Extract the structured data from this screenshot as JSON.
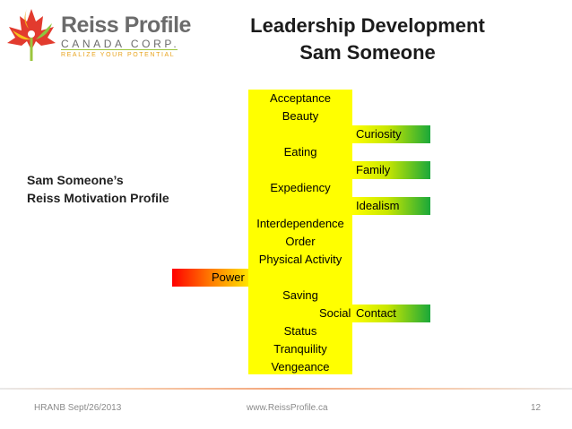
{
  "logo": {
    "name": "Reiss Profile",
    "sub": "CANADA CORP.",
    "tagline": "REALIZE YOUR POTENTIAL"
  },
  "title": {
    "line1": "Leadership Development",
    "line2": "Sam Someone"
  },
  "side_label": {
    "line1": "Sam Someone’s",
    "line2": "Reiss Motivation Profile"
  },
  "profile": {
    "row0": "Acceptance",
    "row1": "Beauty",
    "row2": "Curiosity",
    "row3": "Eating",
    "row4": "Family",
    "row5": "Expediency",
    "row6": "Idealism",
    "row7": "Interdependence",
    "row8": "Order",
    "row9": "Physical Activity",
    "row10": "Power",
    "row11": "Saving",
    "row12_a": "Social",
    "row12_b": "Contact",
    "row13": "Status",
    "row14": "Tranquility",
    "row15": "Vengeance"
  },
  "footer": {
    "left": "HRANB  Sept/26/2013",
    "center": "www.ReissProfile.ca",
    "page": "12"
  },
  "colors": {
    "column": "#ffff00",
    "high": "#1aa83a",
    "low": "#ff0000"
  }
}
